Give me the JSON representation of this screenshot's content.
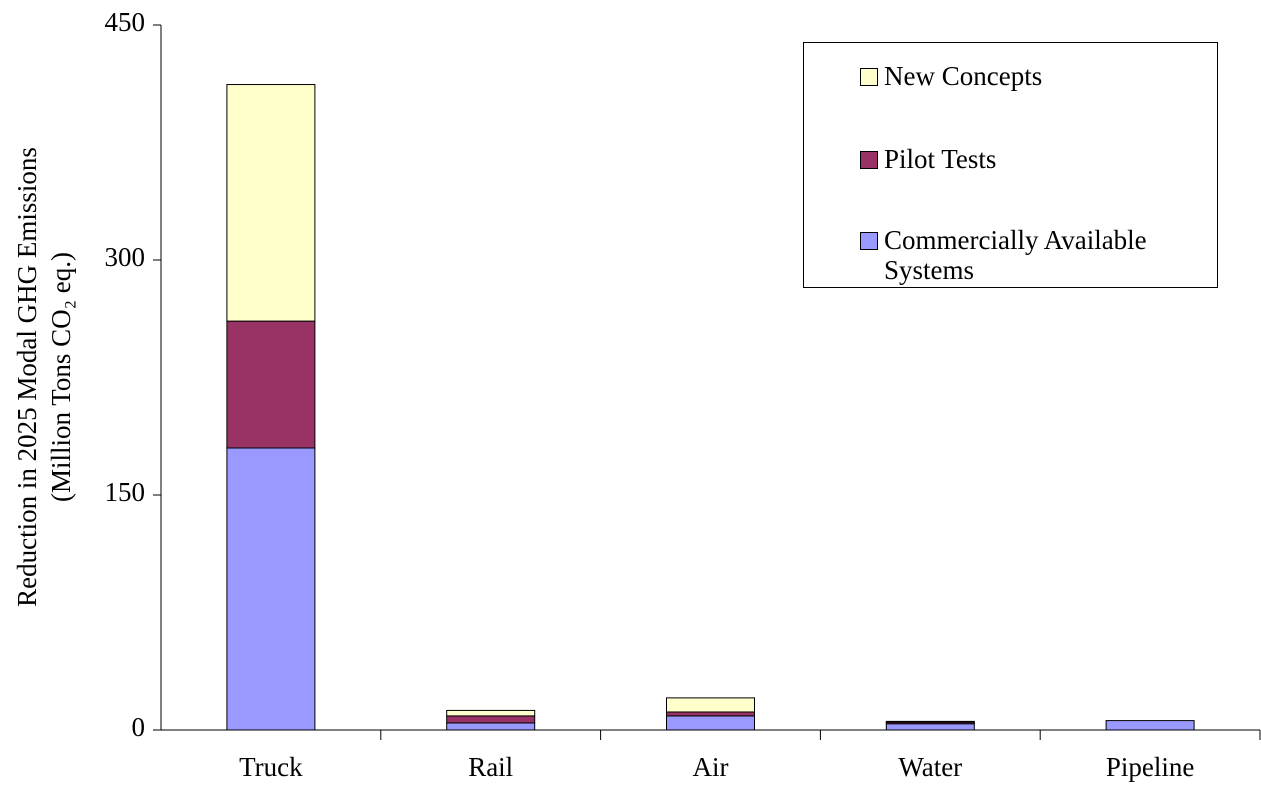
{
  "chart_data": {
    "type": "stacked_bar",
    "y_label": [
      "Reduction in 2025 Modal GHG Emissions",
      "(Million Tons CO₂ eq.)"
    ],
    "categories": [
      "Truck",
      "Rail",
      "Air",
      "Water",
      "Pipeline"
    ],
    "series": [
      {
        "name": "Commercially Available Systems",
        "color": "#9999ff",
        "values": [
          180,
          4.5,
          9,
          4,
          6
        ]
      },
      {
        "name": "Pilot Tests",
        "color": "#993366",
        "values": [
          81,
          4.5,
          2.5,
          1,
          0
        ]
      },
      {
        "name": "New Concepts",
        "color": "#ffffcc",
        "values": [
          151,
          3.5,
          9,
          0.5,
          0
        ]
      }
    ],
    "ylim": [
      0,
      450
    ],
    "yticks": [
      0,
      150,
      300,
      450
    ],
    "legend": "top-right"
  }
}
